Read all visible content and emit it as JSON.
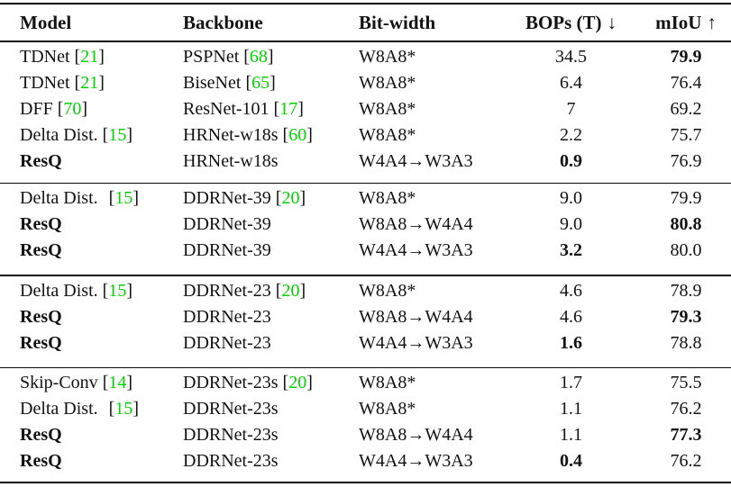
{
  "table": {
    "citation_color": "#00d400",
    "columns": [
      {
        "label": "Model",
        "arrow": ""
      },
      {
        "label": "Backbone",
        "arrow": ""
      },
      {
        "label": "Bit-width",
        "arrow": ""
      },
      {
        "label": "BOPs (T)",
        "arrow": "↓"
      },
      {
        "label": "mIoU",
        "arrow": "↑"
      }
    ],
    "groups": [
      {
        "rows": [
          {
            "model": "TDNet",
            "model_cite": "21",
            "model_bold": false,
            "wide_gap": false,
            "backbone": "PSPNet",
            "backbone_cite": "68",
            "bitwidth": "W8A8*",
            "bops": "34.5",
            "bops_bold": false,
            "miou": "79.9",
            "miou_bold": true
          },
          {
            "model": "TDNet",
            "model_cite": "21",
            "model_bold": false,
            "wide_gap": false,
            "backbone": "BiseNet",
            "backbone_cite": "65",
            "bitwidth": "W8A8*",
            "bops": "6.4",
            "bops_bold": false,
            "miou": "76.4",
            "miou_bold": false
          },
          {
            "model": "DFF",
            "model_cite": "70",
            "model_bold": false,
            "wide_gap": false,
            "backbone": "ResNet-101",
            "backbone_cite": "17",
            "bitwidth": "W8A8*",
            "bops": "7",
            "bops_bold": false,
            "miou": "69.2",
            "miou_bold": false
          },
          {
            "model": "Delta Dist.",
            "model_cite": "15",
            "model_bold": false,
            "wide_gap": false,
            "backbone": "HRNet-w18s",
            "backbone_cite": "60",
            "bitwidth": "W8A8*",
            "bops": "2.2",
            "bops_bold": false,
            "miou": "75.7",
            "miou_bold": false
          },
          {
            "model": "ResQ",
            "model_cite": "",
            "model_bold": true,
            "wide_gap": false,
            "backbone": "HRNet-w18s",
            "backbone_cite": "",
            "bitwidth": "W4A4→W3A3",
            "bops": "0.9",
            "bops_bold": true,
            "miou": "76.9",
            "miou_bold": false
          }
        ]
      },
      {
        "rows": [
          {
            "model": "Delta Dist.",
            "model_cite": "15",
            "model_bold": false,
            "wide_gap": true,
            "backbone": "DDRNet-39",
            "backbone_cite": "20",
            "bitwidth": "W8A8*",
            "bops": "9.0",
            "bops_bold": false,
            "miou": "79.9",
            "miou_bold": false
          },
          {
            "model": "ResQ",
            "model_cite": "",
            "model_bold": true,
            "wide_gap": false,
            "backbone": "DDRNet-39",
            "backbone_cite": "",
            "bitwidth": "W8A8→W4A4",
            "bops": "9.0",
            "bops_bold": false,
            "miou": "80.8",
            "miou_bold": true
          },
          {
            "model": "ResQ",
            "model_cite": "",
            "model_bold": true,
            "wide_gap": false,
            "backbone": "DDRNet-39",
            "backbone_cite": "",
            "bitwidth": "W4A4→W3A3",
            "bops": "3.2",
            "bops_bold": true,
            "miou": "80.0",
            "miou_bold": false
          }
        ]
      },
      {
        "rows": [
          {
            "model": "Delta Dist.",
            "model_cite": "15",
            "model_bold": false,
            "wide_gap": false,
            "backbone": "DDRNet-23",
            "backbone_cite": "20",
            "bitwidth": "W8A8*",
            "bops": "4.6",
            "bops_bold": false,
            "miou": "78.9",
            "miou_bold": false
          },
          {
            "model": "ResQ",
            "model_cite": "",
            "model_bold": true,
            "wide_gap": false,
            "backbone": "DDRNet-23",
            "backbone_cite": "",
            "bitwidth": "W8A8→W4A4",
            "bops": "4.6",
            "bops_bold": false,
            "miou": "79.3",
            "miou_bold": true
          },
          {
            "model": "ResQ",
            "model_cite": "",
            "model_bold": true,
            "wide_gap": false,
            "backbone": "DDRNet-23",
            "backbone_cite": "",
            "bitwidth": "W4A4→W3A3",
            "bops": "1.6",
            "bops_bold": true,
            "miou": "78.8",
            "miou_bold": false
          }
        ]
      },
      {
        "rows": [
          {
            "model": "Skip-Conv",
            "model_cite": "14",
            "model_bold": false,
            "wide_gap": false,
            "backbone": "DDRNet-23s",
            "backbone_cite": "20",
            "bitwidth": "W8A8*",
            "bops": "1.7",
            "bops_bold": false,
            "miou": "75.5",
            "miou_bold": false
          },
          {
            "model": "Delta Dist.",
            "model_cite": "15",
            "model_bold": false,
            "wide_gap": true,
            "backbone": "DDRNet-23s",
            "backbone_cite": "",
            "bitwidth": "W8A8*",
            "bops": "1.1",
            "bops_bold": false,
            "miou": "76.2",
            "miou_bold": false
          },
          {
            "model": "ResQ",
            "model_cite": "",
            "model_bold": true,
            "wide_gap": false,
            "backbone": "DDRNet-23s",
            "backbone_cite": "",
            "bitwidth": "W8A8→W4A4",
            "bops": "1.1",
            "bops_bold": false,
            "miou": "77.3",
            "miou_bold": true
          },
          {
            "model": "ResQ",
            "model_cite": "",
            "model_bold": true,
            "wide_gap": false,
            "backbone": "DDRNet-23s",
            "backbone_cite": "",
            "bitwidth": "W4A4→W3A3",
            "bops": "0.4",
            "bops_bold": true,
            "miou": "76.2",
            "miou_bold": false
          }
        ]
      }
    ]
  }
}
